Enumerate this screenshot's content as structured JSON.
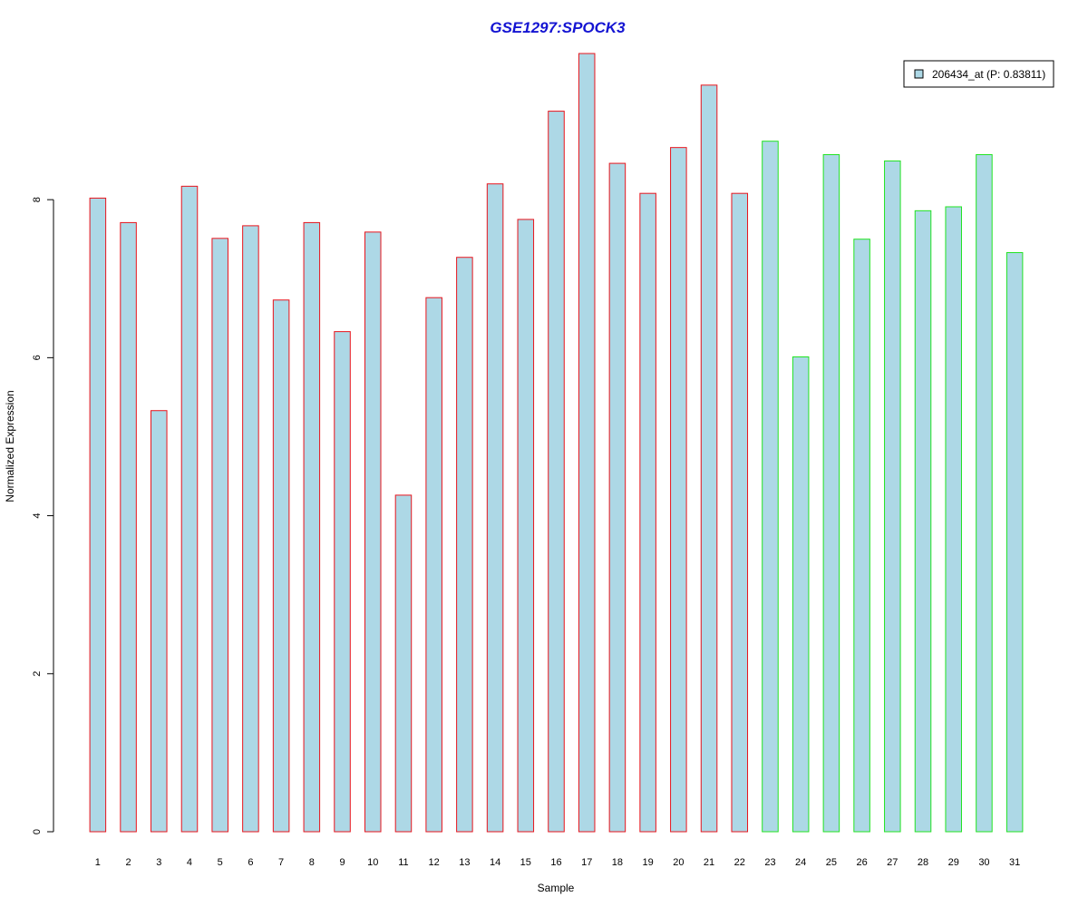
{
  "chart_data": {
    "type": "bar",
    "title": "GSE1297:SPOCK3",
    "xlabel": "Sample",
    "ylabel": "Normalized Expression",
    "ylim": [
      0,
      9.85
    ],
    "yticks": [
      0,
      2,
      4,
      6,
      8
    ],
    "grid": false,
    "legend_position": "top-right",
    "categories": [
      "1",
      "2",
      "3",
      "4",
      "5",
      "6",
      "7",
      "8",
      "9",
      "10",
      "11",
      "12",
      "13",
      "14",
      "15",
      "16",
      "17",
      "18",
      "19",
      "20",
      "21",
      "22",
      "23",
      "24",
      "25",
      "26",
      "27",
      "28",
      "29",
      "30",
      "31"
    ],
    "series": [
      {
        "name": "206434_at (P: 0.83811)",
        "values": [
          8.02,
          7.71,
          5.33,
          8.17,
          7.51,
          7.67,
          6.73,
          7.71,
          6.33,
          7.59,
          4.26,
          6.76,
          7.27,
          8.2,
          7.75,
          9.12,
          9.85,
          8.46,
          8.08,
          8.66,
          9.45,
          8.08,
          8.74,
          6.01,
          8.57,
          7.5,
          8.49,
          7.86,
          7.91,
          8.57,
          7.33
        ],
        "fill": "#add8e6",
        "group_border_colors": [
          "#e8141c",
          "#e8141c",
          "#e8141c",
          "#e8141c",
          "#e8141c",
          "#e8141c",
          "#e8141c",
          "#e8141c",
          "#e8141c",
          "#e8141c",
          "#e8141c",
          "#e8141c",
          "#e8141c",
          "#e8141c",
          "#e8141c",
          "#e8141c",
          "#e8141c",
          "#e8141c",
          "#e8141c",
          "#e8141c",
          "#e8141c",
          "#e8141c",
          "#22e322",
          "#22e322",
          "#22e322",
          "#22e322",
          "#22e322",
          "#22e322",
          "#22e322",
          "#22e322",
          "#22e322"
        ]
      }
    ]
  },
  "colors": {
    "title": "#1414d2",
    "axis": "#000000"
  }
}
